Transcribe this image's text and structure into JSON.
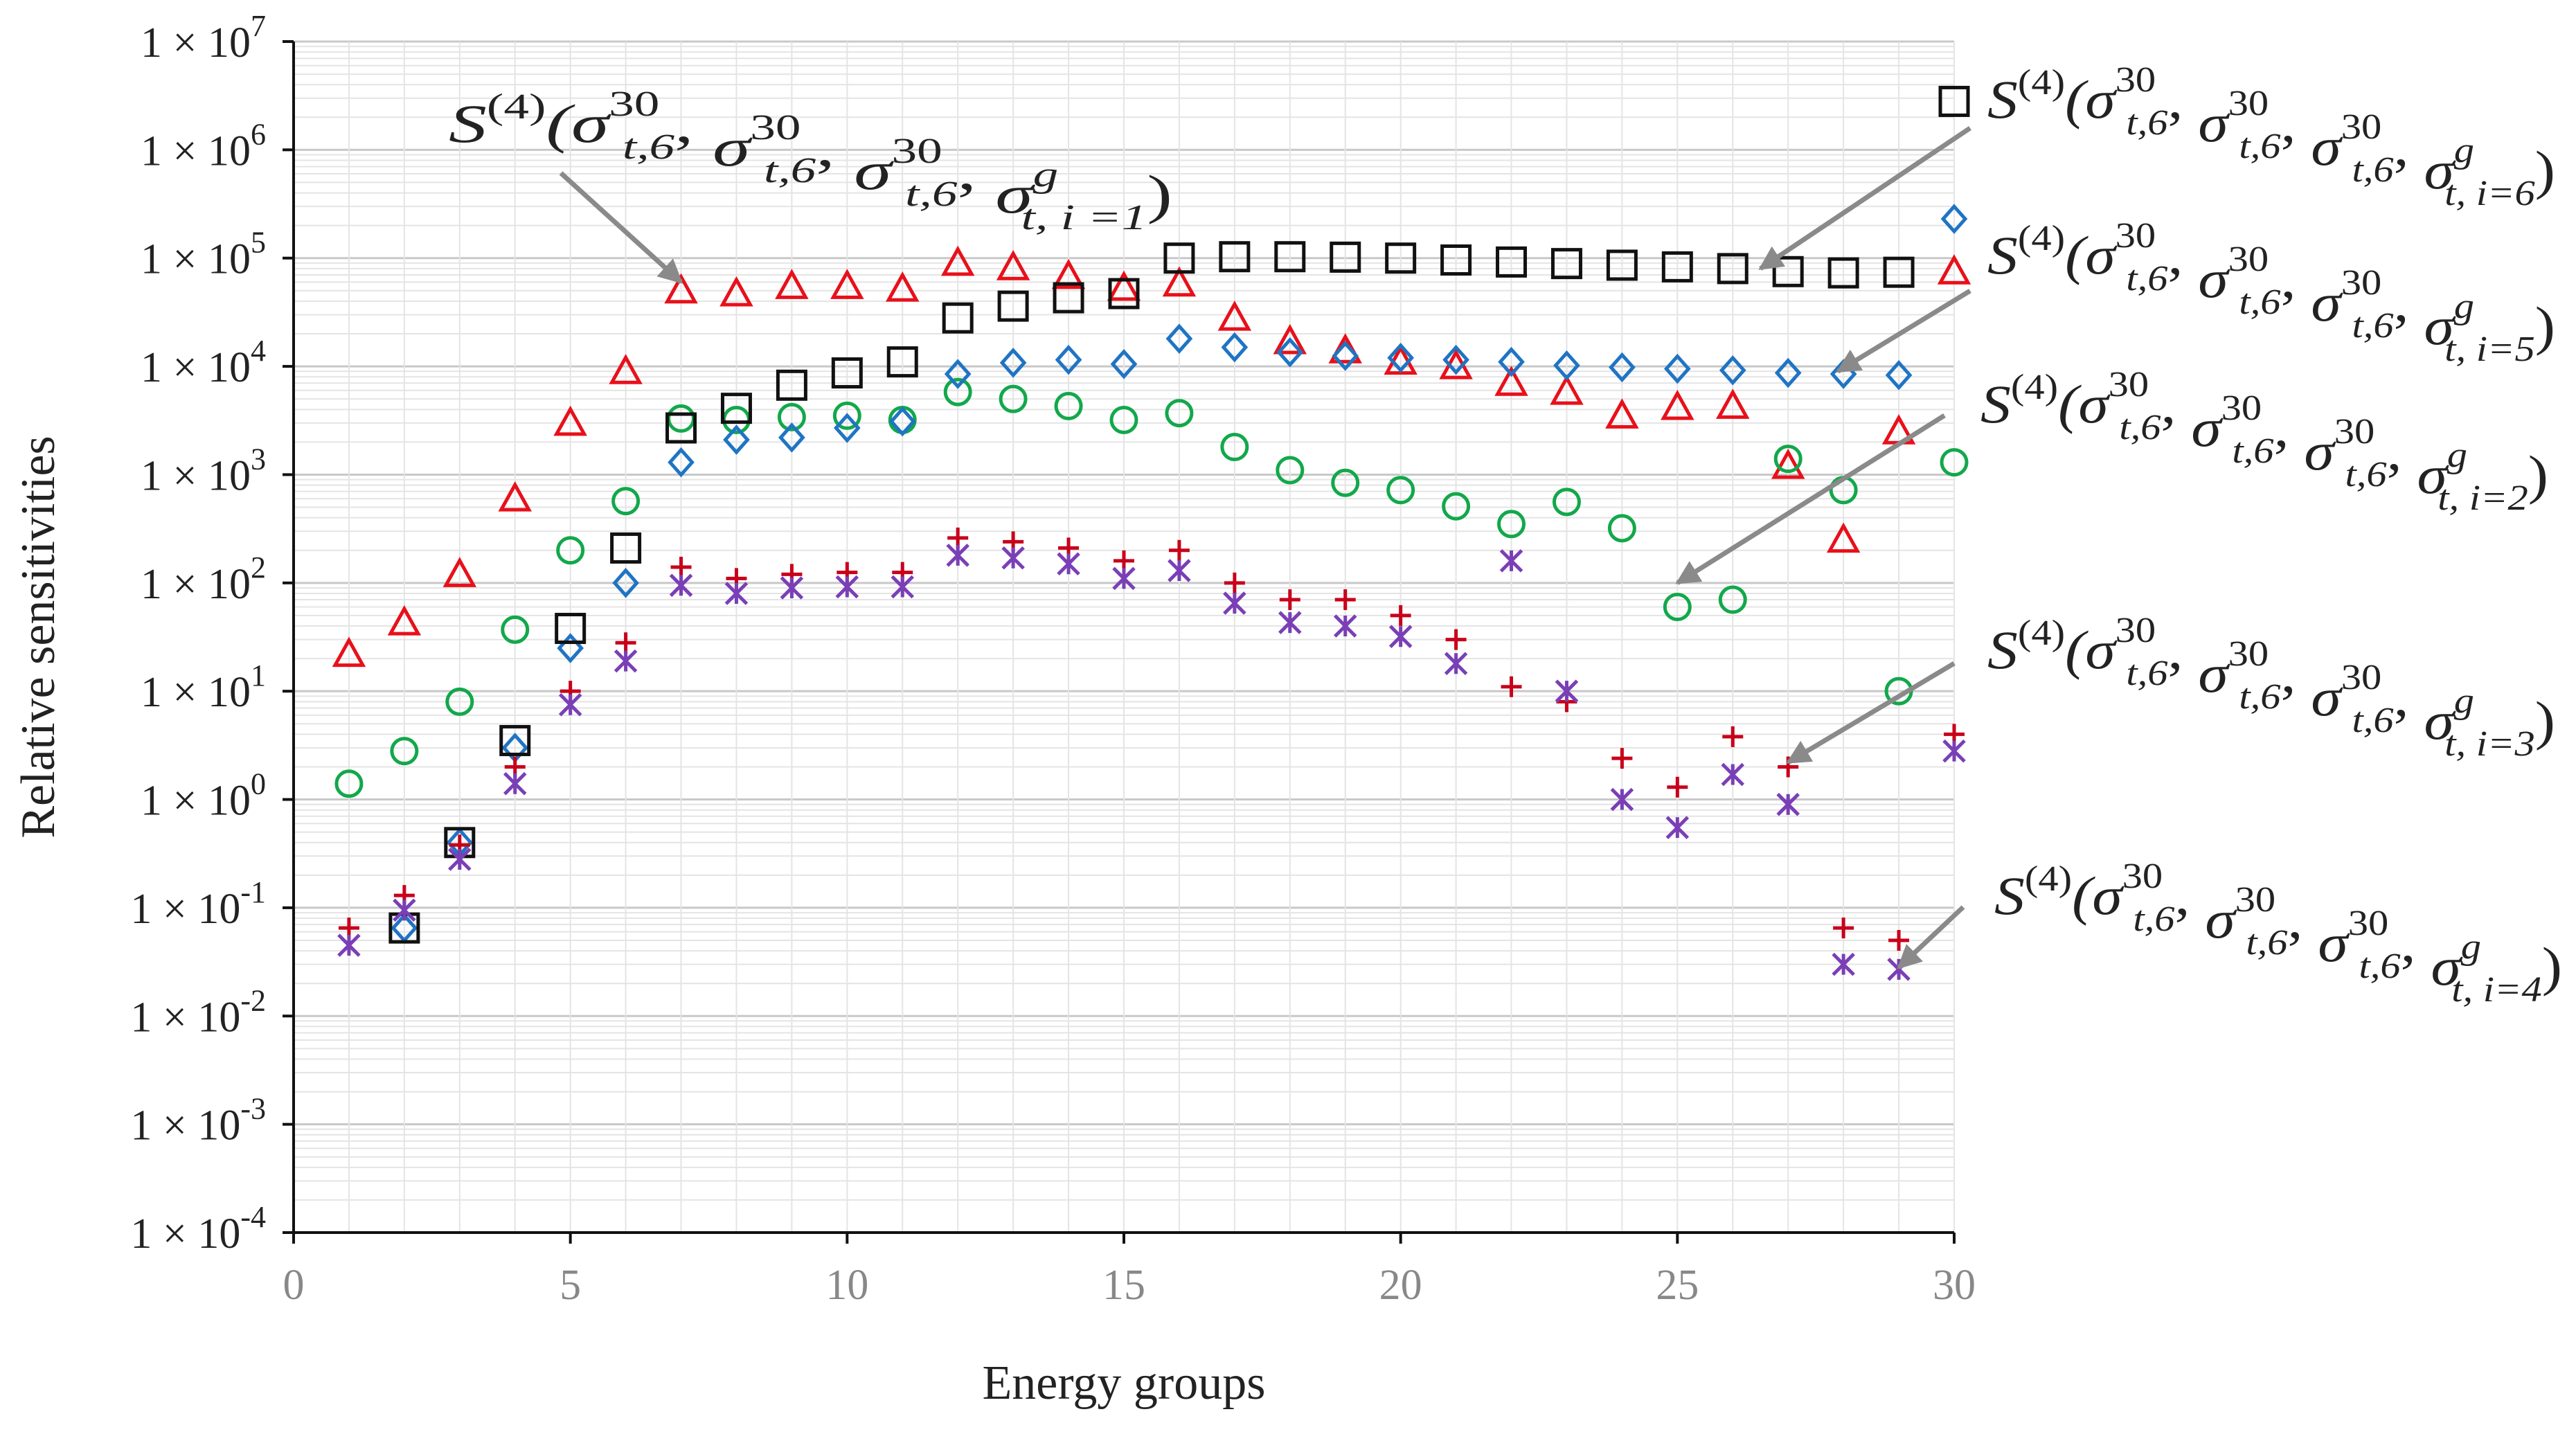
{
  "chart_data": {
    "type": "scatter",
    "xlabel": "Energy groups",
    "ylabel": "Relative sensitivities",
    "xlim": [
      0,
      30
    ],
    "ylim_log10": [
      -4,
      7
    ],
    "x_ticks": [
      "0",
      "5",
      "10",
      "15",
      "20",
      "25",
      "30"
    ],
    "y_ticks": [
      {
        "base": "1 × 10",
        "exp": "-4"
      },
      {
        "base": "1 × 10",
        "exp": "-3"
      },
      {
        "base": "1 × 10",
        "exp": "-2"
      },
      {
        "base": "1 × 10",
        "exp": "-1"
      },
      {
        "base": "1 × 10",
        "exp": "0"
      },
      {
        "base": "1 × 10",
        "exp": "1"
      },
      {
        "base": "1 × 10",
        "exp": "2"
      },
      {
        "base": "1 × 10",
        "exp": "3"
      },
      {
        "base": "1 × 10",
        "exp": "4"
      },
      {
        "base": "1 × 10",
        "exp": "5"
      },
      {
        "base": "1 × 10",
        "exp": "6"
      },
      {
        "base": "1 × 10",
        "exp": "7"
      }
    ],
    "grid": true,
    "series": [
      {
        "name": "i=1",
        "marker": "triangle",
        "color": "#e8101a",
        "x": [
          1,
          2,
          3,
          4,
          5,
          6,
          7,
          8,
          9,
          10,
          11,
          12,
          13,
          14,
          15,
          16,
          17,
          18,
          19,
          20,
          21,
          22,
          23,
          24,
          25,
          26,
          27,
          28,
          29,
          30
        ],
        "y": [
          22,
          43,
          120,
          600,
          3000,
          9000,
          50000,
          47000,
          55000,
          55000,
          52000,
          90000,
          82000,
          68000,
          53000,
          58000,
          28000,
          17000,
          14000,
          11000,
          10000,
          7000,
          5800,
          3500,
          4200,
          4300,
          1200,
          250,
          2500,
          75000
        ]
      },
      {
        "name": "i=2",
        "marker": "circle",
        "color": "#12a84b",
        "x": [
          1,
          2,
          3,
          4,
          5,
          6,
          7,
          8,
          9,
          10,
          11,
          12,
          13,
          14,
          15,
          16,
          17,
          18,
          19,
          20,
          21,
          22,
          23,
          24,
          25,
          26,
          27,
          28,
          29,
          30
        ],
        "y": [
          1.4,
          2.8,
          8,
          37,
          200,
          570,
          3300,
          3200,
          3400,
          3500,
          3200,
          5800,
          5000,
          4300,
          3200,
          3700,
          1800,
          1100,
          840,
          720,
          510,
          350,
          560,
          320,
          60,
          70,
          1400,
          720,
          10,
          1300
        ]
      },
      {
        "name": "i=3",
        "marker": "plus",
        "color": "#c8001a",
        "x": [
          1,
          2,
          3,
          4,
          5,
          6,
          7,
          8,
          9,
          10,
          11,
          12,
          13,
          14,
          15,
          16,
          17,
          18,
          19,
          20,
          21,
          22,
          23,
          24,
          25,
          26,
          27,
          28,
          29,
          30
        ],
        "y": [
          0.065,
          0.13,
          0.38,
          2,
          10,
          28,
          140,
          110,
          120,
          125,
          125,
          260,
          240,
          210,
          160,
          200,
          100,
          70,
          70,
          50,
          30,
          11,
          8,
          2.4,
          1.3,
          3.8,
          2,
          0.065,
          0.05,
          4
        ]
      },
      {
        "name": "i=4",
        "marker": "asterisk",
        "color": "#7a3fb6",
        "x": [
          1,
          2,
          3,
          4,
          5,
          6,
          7,
          8,
          9,
          10,
          11,
          12,
          13,
          14,
          15,
          16,
          17,
          18,
          19,
          20,
          21,
          22,
          23,
          24,
          25,
          26,
          27,
          28,
          29,
          30
        ],
        "y": [
          0.045,
          0.095,
          0.28,
          1.4,
          7.5,
          19,
          95,
          80,
          90,
          92,
          92,
          180,
          170,
          150,
          110,
          130,
          65,
          43,
          40,
          32,
          18,
          160,
          10,
          1,
          0.55,
          1.7,
          0.9,
          0.03,
          0.027,
          2.8
        ]
      },
      {
        "name": "i=5",
        "marker": "diamond",
        "color": "#1f74c4",
        "x": [
          2,
          3,
          4,
          5,
          6,
          7,
          8,
          9,
          10,
          11,
          12,
          13,
          14,
          15,
          16,
          17,
          18,
          19,
          20,
          21,
          22,
          23,
          24,
          25,
          26,
          27,
          28,
          29,
          30
        ],
        "y": [
          0.065,
          0.4,
          3,
          25,
          100,
          1300,
          2100,
          2200,
          2700,
          3100,
          8500,
          10800,
          11500,
          10500,
          18000,
          15000,
          13500,
          12500,
          12000,
          11500,
          11000,
          10200,
          9800,
          9500,
          9200,
          8700,
          8500,
          8300,
          230000
        ]
      },
      {
        "name": "i=6",
        "marker": "square",
        "color": "#111111",
        "x": [
          2,
          3,
          4,
          5,
          6,
          7,
          8,
          9,
          10,
          11,
          12,
          13,
          14,
          15,
          16,
          17,
          18,
          19,
          20,
          21,
          22,
          23,
          24,
          25,
          26,
          27,
          28,
          29,
          30
        ],
        "y": [
          0.065,
          0.4,
          3.5,
          38,
          210,
          2700,
          4100,
          6700,
          8700,
          11000,
          28000,
          36000,
          43000,
          47000,
          100000,
          103000,
          103000,
          102000,
          100000,
          96000,
          92000,
          89000,
          86000,
          83000,
          80000,
          75000,
          73000,
          74000,
          2800000
        ]
      }
    ],
    "annotations": [
      {
        "name": "i=1",
        "prefix": "S",
        "order": "(4)",
        "arg": "(σ",
        "sub1": "t,6",
        "sup1": "30",
        "lastsup": "g",
        "lastsub": "t, i =1",
        "close": ")",
        "arrow_to": [
          7,
          60000
        ]
      },
      {
        "name": "i=6",
        "prefix": "S",
        "order": "(4)",
        "arg": "(σ",
        "sub1": "t,6",
        "sup1": "30",
        "lastsup": "g",
        "lastsub": "t, i=6",
        "close": ")",
        "arrow_to": [
          26.5,
          80000
        ]
      },
      {
        "name": "i=5",
        "prefix": "S",
        "order": "(4)",
        "arg": "(σ",
        "sub1": "t,6",
        "sup1": "30",
        "lastsup": "g",
        "lastsub": "t, i=5",
        "close": ")",
        "arrow_to": [
          27.9,
          9000
        ]
      },
      {
        "name": "i=2",
        "prefix": "S",
        "order": "(4)",
        "arg": "(σ",
        "sub1": "t,6",
        "sup1": "30",
        "lastsup": "g",
        "lastsub": "t, i=2",
        "close": ")",
        "arrow_to": [
          25,
          100
        ]
      },
      {
        "name": "i=3",
        "prefix": "S",
        "order": "(4)",
        "arg": "(σ",
        "sub1": "t,6",
        "sup1": "30",
        "lastsup": "g",
        "lastsub": "t, i=3",
        "close": ")",
        "arrow_to": [
          27,
          2.2
        ]
      },
      {
        "name": "i=4",
        "prefix": "S",
        "order": "(4)",
        "arg": "(σ",
        "sub1": "t,6",
        "sup1": "30",
        "lastsup": "g",
        "lastsub": "t, i=4",
        "close": ")",
        "arrow_to": [
          29,
          0.028
        ]
      }
    ],
    "sep": ", "
  }
}
